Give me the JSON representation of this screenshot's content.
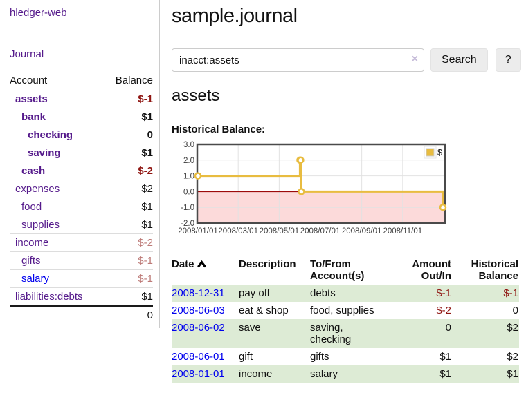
{
  "app": {
    "brand": "hledger-web",
    "nav_journal": "Journal"
  },
  "sidebar": {
    "headers": {
      "account": "Account",
      "balance": "Balance"
    },
    "rows": [
      {
        "account": "assets",
        "balance": "$-1",
        "level": 1,
        "in_tree": true,
        "neg": "strong",
        "link": "purple"
      },
      {
        "account": "bank",
        "balance": "$1",
        "level": 2,
        "in_tree": true,
        "neg": "none",
        "link": "purple"
      },
      {
        "account": "checking",
        "balance": "0",
        "level": 3,
        "in_tree": true,
        "neg": "none",
        "link": "purple"
      },
      {
        "account": "saving",
        "balance": "$1",
        "level": 3,
        "in_tree": true,
        "neg": "none",
        "link": "purple"
      },
      {
        "account": "cash",
        "balance": "$-2",
        "level": 2,
        "in_tree": true,
        "neg": "strong",
        "link": "purple"
      },
      {
        "account": "expenses",
        "balance": "$2",
        "level": 1,
        "in_tree": false,
        "neg": "none",
        "link": "purple"
      },
      {
        "account": "food",
        "balance": "$1",
        "level": 2,
        "in_tree": false,
        "neg": "none",
        "link": "purple"
      },
      {
        "account": "supplies",
        "balance": "$1",
        "level": 2,
        "in_tree": false,
        "neg": "none",
        "link": "purple"
      },
      {
        "account": "income",
        "balance": "$-2",
        "level": 1,
        "in_tree": false,
        "neg": "soft",
        "link": "purple"
      },
      {
        "account": "gifts",
        "balance": "$-1",
        "level": 2,
        "in_tree": false,
        "neg": "soft",
        "link": "purple"
      },
      {
        "account": "salary",
        "balance": "$-1",
        "level": 2,
        "in_tree": false,
        "neg": "soft",
        "link": "blue"
      },
      {
        "account": "liabilities:debts",
        "balance": "$1",
        "level": 1,
        "in_tree": false,
        "neg": "none",
        "link": "purple"
      }
    ],
    "total": "0"
  },
  "header": {
    "title": "sample.journal"
  },
  "search": {
    "value": "inacct:assets",
    "clear_icon": "×",
    "button_label": "Search",
    "help_label": "?"
  },
  "account_page": {
    "heading": "assets",
    "chart_label": "Historical Balance:"
  },
  "chart_data": {
    "type": "line",
    "title": "Historical Balance",
    "step": true,
    "series": [
      {
        "name": "$",
        "color": "#e8bc40",
        "points": [
          [
            "2008-01-01",
            1
          ],
          [
            "2008-06-01",
            2
          ],
          [
            "2008-06-02",
            2
          ],
          [
            "2008-06-03",
            0
          ],
          [
            "2008-12-31",
            -1
          ]
        ]
      }
    ],
    "xrange": [
      "2008-01-01",
      "2008-12-31"
    ],
    "ylim": [
      -2,
      3
    ],
    "yticks": [
      "3.0",
      "2.0",
      "1.0",
      "0.0",
      "-1.0",
      "-2.0"
    ],
    "xticks": [
      "2008/01/01",
      "2008/03/01",
      "2008/05/01",
      "2008/07/01",
      "2008/09/01",
      "2008/11/01"
    ],
    "grid": true,
    "legend_position": "top-right",
    "legend_label": "$",
    "colors": {
      "line": "#e8bc40",
      "marker_fill": "#ffffff",
      "negative_fill": "#fcdada",
      "zero_line": "#9c0b0b",
      "gridline": "#e2e2e2",
      "border": "#4a4a4a",
      "tick_text": "#3c3c3c"
    }
  },
  "register": {
    "columns": [
      {
        "label": "Date"
      },
      {
        "label": "Description"
      },
      {
        "label": "To/From Account(s)"
      },
      {
        "label": "Amount Out/In"
      },
      {
        "label": "Historical Balance"
      }
    ],
    "rows": [
      {
        "date": "2008-12-31",
        "description": "pay off",
        "accounts": "debts",
        "amount": "$-1",
        "amount_neg": true,
        "balance": "$-1",
        "balance_neg": true
      },
      {
        "date": "2008-06-03",
        "description": "eat & shop",
        "accounts": "food, supplies",
        "amount": "$-2",
        "amount_neg": true,
        "balance": "0",
        "balance_neg": false
      },
      {
        "date": "2008-06-02",
        "description": "save",
        "accounts": "saving, checking",
        "amount": "0",
        "amount_neg": false,
        "balance": "$2",
        "balance_neg": false
      },
      {
        "date": "2008-06-01",
        "description": "gift",
        "accounts": "gifts",
        "amount": "$1",
        "amount_neg": false,
        "balance": "$2",
        "balance_neg": false
      },
      {
        "date": "2008-01-01",
        "description": "income",
        "accounts": "salary",
        "amount": "$1",
        "amount_neg": false,
        "balance": "$1",
        "balance_neg": false
      }
    ]
  }
}
